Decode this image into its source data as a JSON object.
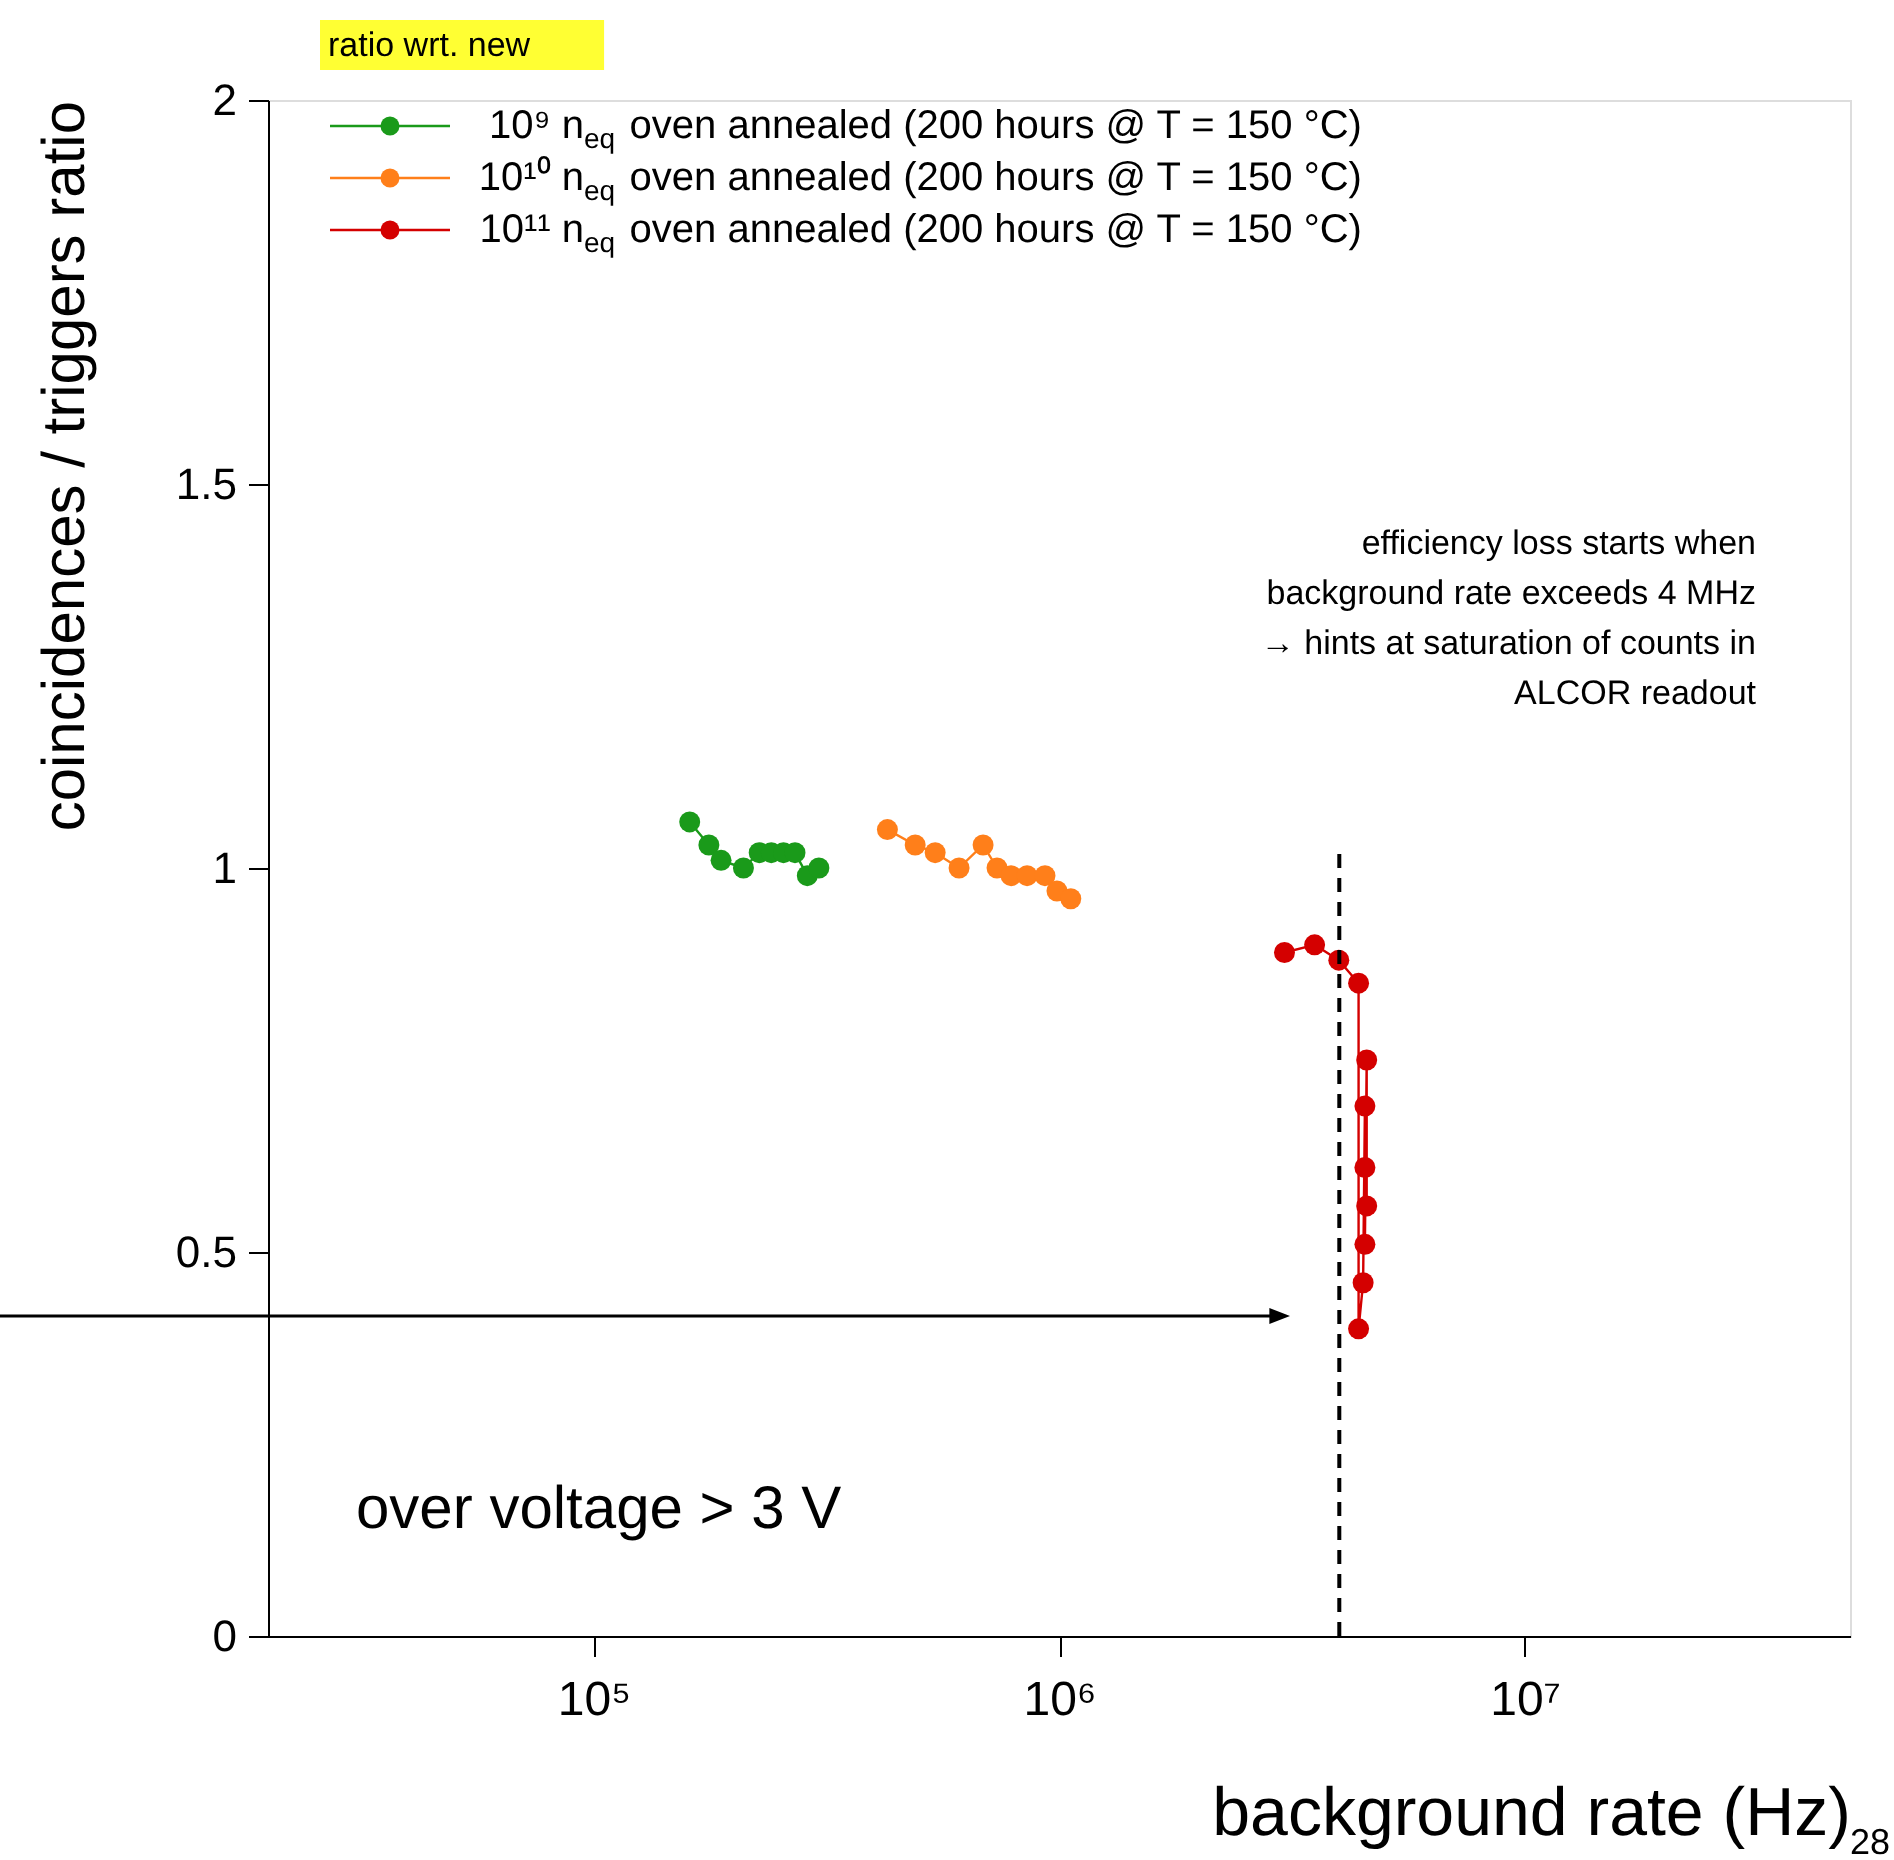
{
  "chart_data": {
    "type": "line",
    "xlabel": "background rate (Hz)",
    "ylabel": "coincidences / triggers ratio",
    "xlim": [
      20000,
      50000000
    ],
    "ylim": [
      0,
      2
    ],
    "xticks": [
      {
        "value": 100000,
        "label": "10⁵"
      },
      {
        "value": 1000000,
        "label": "10⁶"
      },
      {
        "value": 10000000,
        "label": "10⁷"
      }
    ],
    "yticks": [
      0,
      0.5,
      1,
      1.5,
      2
    ],
    "log": "x",
    "grid": false,
    "legend": "top left",
    "marker": "circle",
    "line_style": "solid",
    "annotations": [
      "ratio wrt. new",
      "efficiency loss starts when\nbackground rate exceeds 4 MHz\n→ hints at saturation of counts in\nALCOR readout",
      "over voltage > 3 V",
      "28"
    ],
    "series": [
      {
        "name": "10⁹ n$_{eq}$ oven annealed (200 hours @ T = 150 °C)",
        "color": "#1a9a1a",
        "x": [
          161000,
          177000,
          188000,
          210000,
          227000,
          241000,
          256000,
          271000,
          288000,
          305000
        ],
        "values": [
          1.06,
          1.03,
          1.01,
          1.0,
          1.02,
          1.02,
          1.02,
          1.02,
          0.99,
          1.0
        ]
      },
      {
        "name": "10¹⁰ n$_{eq}$ oven annealed (200 hours @ T = 150 °C)",
        "color": "#ff7f1a",
        "x": [
          428000,
          491000,
          542000,
          610000,
          687000,
          736000,
          789000,
          854000,
          933000,
          990000,
          1060000
        ],
        "values": [
          1.05,
          1.03,
          1.02,
          1.0,
          1.03,
          1.0,
          0.99,
          0.99,
          0.99,
          0.97,
          0.96
        ]
      },
      {
        "name": "10¹¹ n$_{eq}$ oven annealed (200 hours @ T = 150 °C)",
        "color": "#d40000",
        "x": [
          3050000,
          3540000,
          3990000,
          4400000,
          4580000,
          4540000,
          4540000,
          4580000,
          4540000,
          4500000,
          4400000
        ],
        "values": [
          0.89,
          0.9,
          0.88,
          0.85,
          0.75,
          0.69,
          0.61,
          0.56,
          0.51,
          0.46,
          0.4
        ]
      },
      {
        "type": "line",
        "color": "#000000",
        "x": [
          4000000,
          4000000
        ],
        "values": [
          0,
          1.03
        ],
        "marker": "none",
        "line_style": "dashed"
      }
    ]
  }
}
